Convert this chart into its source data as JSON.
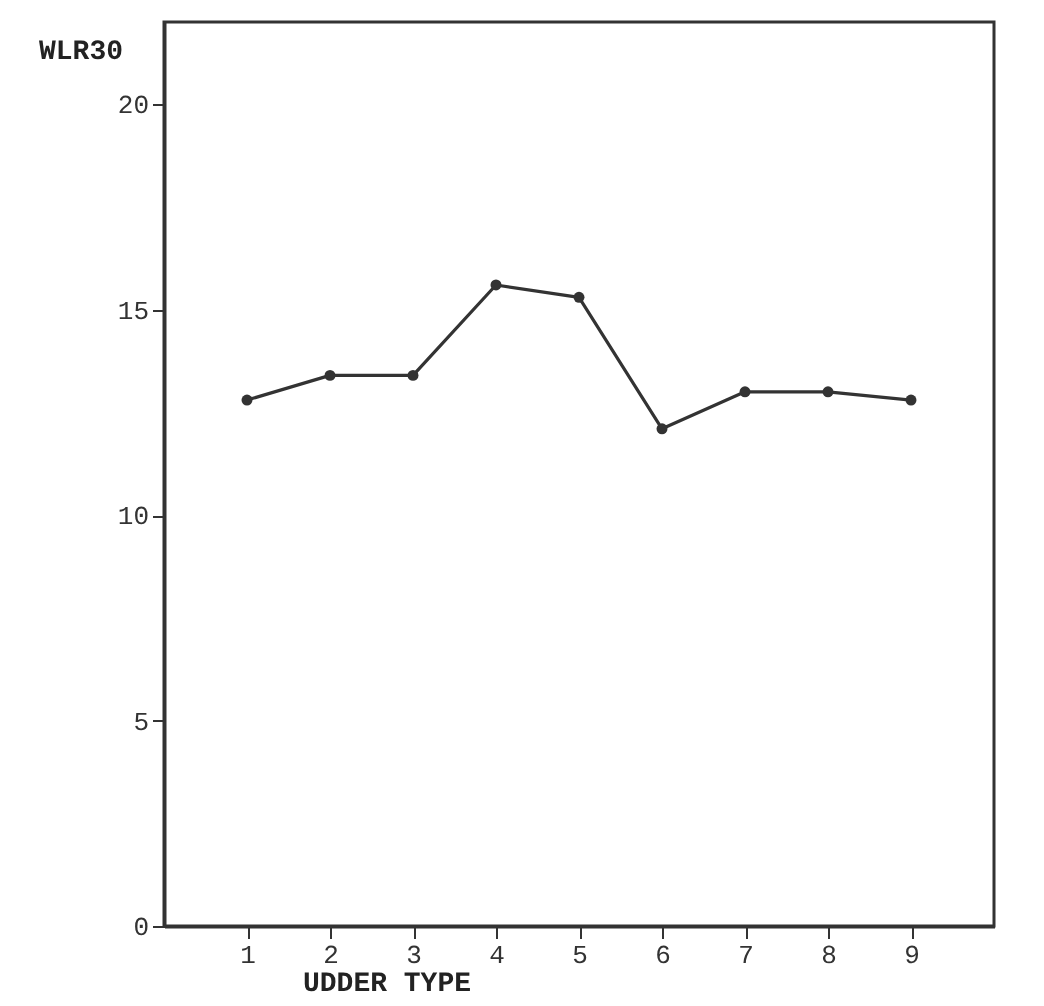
{
  "chart_data": {
    "type": "line",
    "xlabel": "UDDER TYPE",
    "ylabel": "WLR30",
    "x": [
      1,
      2,
      3,
      4,
      5,
      6,
      7,
      8,
      9
    ],
    "series": [
      {
        "color": "#333333",
        "values": [
          12.8,
          13.4,
          13.4,
          15.6,
          15.3,
          12.1,
          13.0,
          13.0,
          12.8
        ]
      }
    ],
    "xlim": [
      0,
      10
    ],
    "xticks": [
      1,
      2,
      3,
      4,
      5,
      6,
      7,
      8,
      9
    ],
    "ylim": [
      0,
      22
    ],
    "yticks": [
      0,
      5,
      10,
      15,
      20
    ],
    "marker": "circle",
    "line_style": "solid"
  }
}
